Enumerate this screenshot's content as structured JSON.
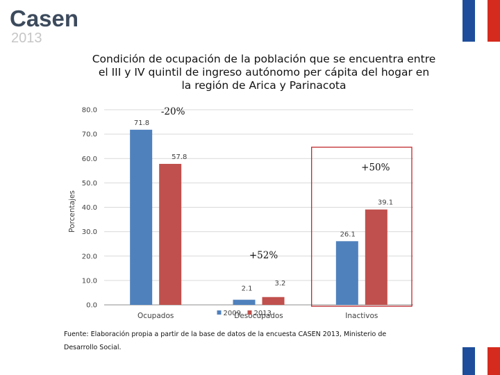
{
  "header": {
    "logo_word": "Casen",
    "logo_year": "2013",
    "flag_colors": [
      "#1e4d9b",
      "#ffffff",
      "#d52b1e"
    ]
  },
  "chart_data": {
    "type": "bar",
    "title": "Condición de ocupación de la población que se encuentra entre el III y IV quintil de ingreso autónomo per cápita del hogar en la región de Arica y Parinacota",
    "title_lines": [
      "Condición de ocupación de la población que se encuentra entre",
      "el III y IV quintil de ingreso autónomo per cápita del hogar en",
      "la región de Arica y Parinacota"
    ],
    "categories": [
      "Ocupados",
      "Desocupados",
      "Inactivos"
    ],
    "series": [
      {
        "name": "2009",
        "color": "#4f81bd",
        "values": [
          71.8,
          2.1,
          26.1
        ],
        "labels": [
          "71.8",
          "2.1",
          "26.1"
        ]
      },
      {
        "name": "2013",
        "color": "#c0504d",
        "values": [
          57.8,
          3.2,
          39.1
        ],
        "labels": [
          "57.8",
          "3.2",
          "39.1"
        ]
      }
    ],
    "xlabel": "",
    "ylabel": "Porcentajes",
    "ylim": [
      0,
      80
    ],
    "yticks": [
      "0.0",
      "10.0",
      "20.0",
      "30.0",
      "40.0",
      "50.0",
      "60.0",
      "70.0",
      "80.0"
    ],
    "grid": true,
    "legend": "bottom-center",
    "annotations": [
      {
        "text": "-20%",
        "category": "Ocupados",
        "y": 79.5
      },
      {
        "text": "+52%",
        "category": "Desocupados",
        "y": 20.5
      },
      {
        "text": "+50%",
        "category": "Inactivos",
        "y": 56.5
      }
    ],
    "highlight_category": "Inactivos",
    "highlight_color": "#c0262d"
  },
  "footer": {
    "source_line1": "Fuente: Elaboración propia a partir de la base de datos de la encuesta CASEN 2013, Ministerio de",
    "source_line2": "Desarrollo Social."
  }
}
